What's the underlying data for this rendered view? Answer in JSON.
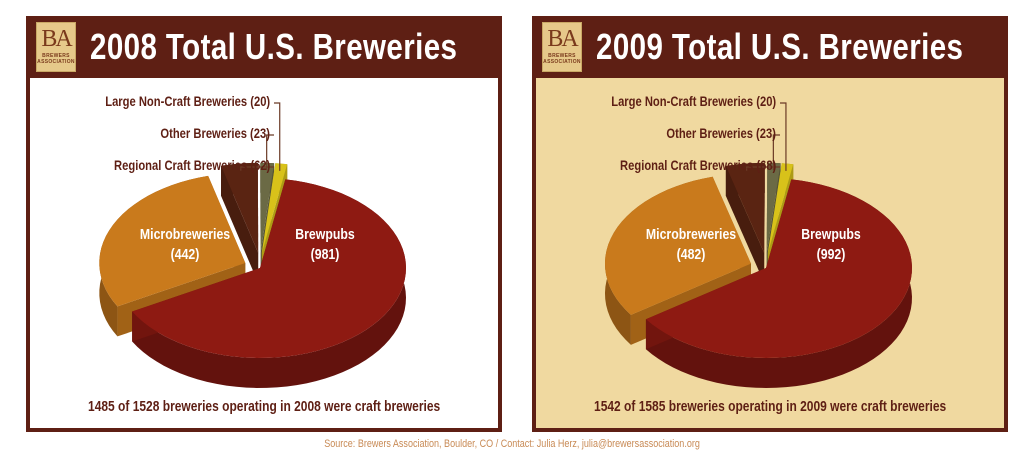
{
  "charts": [
    {
      "title": "2008 Total U.S. Breweries",
      "logo": {
        "mark": "BA",
        "line1": "BREWERS",
        "line2": "ASSOCIATION"
      },
      "labels": {
        "large": "Large Non-Craft Breweries (20)",
        "other": "Other Breweries (23)",
        "regional": "Regional Craft Breweries (62)",
        "micro_name": "Microbreweries",
        "micro_value": "(442)",
        "brewpubs_name": "Brewpubs",
        "brewpubs_value": "(981)"
      },
      "footer": "1485 of 1528 breweries operating in 2008 were craft breweries",
      "background": "#ffffff"
    },
    {
      "title": "2009 Total U.S. Breweries",
      "logo": {
        "mark": "BA",
        "line1": "BREWERS",
        "line2": "ASSOCIATION"
      },
      "labels": {
        "large": "Large Non-Craft Breweries (20)",
        "other": "Other Breweries (23)",
        "regional": "Regional Craft Breweries (68)",
        "micro_name": "Microbreweries",
        "micro_value": "(482)",
        "brewpubs_name": "Brewpubs",
        "brewpubs_value": "(992)"
      },
      "footer": "1542 of 1585 breweries operating in 2009 were craft breweries",
      "background": "#f0d9a0"
    }
  ],
  "source": "Source: Brewers Association, Boulder, CO  /  Contact: Julia Herz, julia@brewersassociation.org",
  "colors": {
    "frame": "#5e1f14",
    "brewpubs": "#8e1a12",
    "micro": "#c97a1c",
    "regional": "#5a2412",
    "other": "#6b6a45",
    "large": "#d8c21a",
    "text": "#5e1f14"
  },
  "chart_data": [
    {
      "type": "pie",
      "title": "2008 Total U.S. Breweries",
      "categories": [
        "Brewpubs",
        "Microbreweries",
        "Regional Craft Breweries",
        "Other Breweries",
        "Large Non-Craft Breweries"
      ],
      "values": [
        981,
        442,
        62,
        23,
        20
      ],
      "total": 1528,
      "annotation": "1485 of 1528 breweries operating in 2008 were craft breweries",
      "style": "3d-exploded"
    },
    {
      "type": "pie",
      "title": "2009 Total U.S. Breweries",
      "categories": [
        "Brewpubs",
        "Microbreweries",
        "Regional Craft Breweries",
        "Other Breweries",
        "Large Non-Craft Breweries"
      ],
      "values": [
        992,
        482,
        68,
        23,
        20
      ],
      "total": 1585,
      "annotation": "1542 of 1585 breweries operating in 2009 were craft breweries",
      "style": "3d-exploded"
    }
  ]
}
